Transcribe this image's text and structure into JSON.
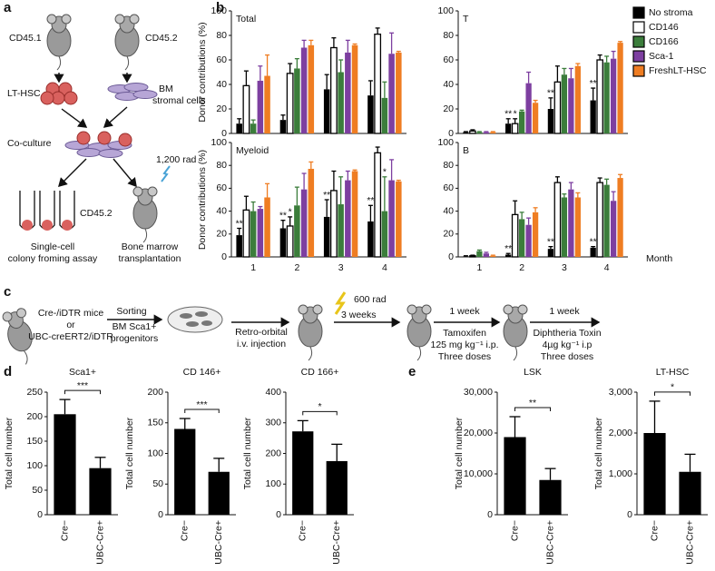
{
  "panel_labels": [
    "a",
    "b",
    "c",
    "d",
    "e"
  ],
  "diagram_a": {
    "mouse_left": "CD45.1",
    "mouse_right": "CD45.2",
    "cells_left": "LT-HSC",
    "cells_right": [
      "BM",
      "stromal cells"
    ],
    "coculture": "Co-culture",
    "tubes": "CD45.2",
    "radiation": "1,200 rad",
    "assay": [
      "Single-cell",
      "colony froming assay"
    ],
    "transplant": [
      "Bone marrow",
      "transplantation"
    ]
  },
  "diagram_c": {
    "mice": [
      "Cre-/iDTR mice",
      "or",
      "UBC-creERT2/iDTR"
    ],
    "sorting": [
      "Sorting",
      "BM Sca1+",
      "progenitors"
    ],
    "injection": [
      "Retro-orbital",
      "i.v. injection"
    ],
    "radiation": "600 rad",
    "wait": "3 weeks",
    "tamoxifen": [
      "1 week",
      "Tamoxifen",
      "125 mg kg⁻¹ i.p.",
      "Three doses"
    ],
    "toxin": [
      "1 week",
      "Diphtheria Toxin",
      "4µg kg⁻¹ i.p",
      "Three doses"
    ]
  },
  "chart_data": [
    {
      "type": "bar",
      "title": "Total",
      "ylabel": "Donor contributions (%)",
      "legend": "right",
      "categories": [
        null,
        null,
        null,
        null
      ],
      "ylim": [
        0,
        100
      ],
      "yticks": [
        0,
        20,
        40,
        60,
        80,
        100
      ],
      "series": [
        {
          "name": "No stroma",
          "color": "#000000",
          "values": [
            8,
            11,
            36,
            31
          ],
          "errors": [
            4,
            4,
            12,
            12
          ]
        },
        {
          "name": "CD146",
          "color": "#ffffff",
          "values": [
            39,
            49,
            70,
            81
          ],
          "errors": [
            12,
            8,
            8,
            5
          ]
        },
        {
          "name": "CD166",
          "color": "#3b7d3b",
          "values": [
            8,
            53,
            50,
            29
          ],
          "errors": [
            3,
            8,
            10,
            13
          ]
        },
        {
          "name": "Sca-1",
          "color": "#7d3fa0",
          "values": [
            43,
            70,
            66,
            65
          ],
          "errors": [
            12,
            6,
            10,
            17
          ]
        },
        {
          "name": "FreshLT-HSC",
          "color": "#ef7d22",
          "values": [
            47,
            72,
            72,
            66
          ],
          "errors": [
            17,
            4,
            1,
            1
          ]
        }
      ]
    },
    {
      "type": "bar",
      "title": "T",
      "categories": [
        null,
        null,
        null,
        null
      ],
      "ylim": [
        0,
        100
      ],
      "yticks": [
        0,
        20,
        40,
        60,
        80,
        100
      ],
      "series": [
        {
          "color": "#000000",
          "values": [
            1,
            8,
            20,
            27
          ],
          "errors": [
            0.5,
            4,
            9,
            10
          ],
          "annotations": [
            null,
            "**",
            "**",
            "**"
          ]
        },
        {
          "color": "#ffffff",
          "values": [
            2,
            8,
            42,
            60
          ],
          "errors": [
            1,
            4,
            13,
            4
          ],
          "annotations": [
            null,
            "*",
            null,
            null
          ]
        },
        {
          "color": "#3b7d3b",
          "values": [
            1,
            18,
            48,
            58
          ],
          "errors": [
            0.5,
            1,
            5,
            5
          ]
        },
        {
          "color": "#7d3fa0",
          "values": [
            1,
            41,
            45,
            61
          ],
          "errors": [
            0.5,
            9,
            8,
            6
          ]
        },
        {
          "color": "#ef7d22",
          "values": [
            1,
            25,
            55,
            74
          ],
          "errors": [
            0.5,
            2,
            2,
            1
          ]
        }
      ]
    },
    {
      "type": "bar",
      "title": "Myeloid",
      "ylabel": "Donor contributions (%)",
      "categories": [
        "1",
        "2",
        "3",
        "4"
      ],
      "ylim": [
        0,
        100
      ],
      "yticks": [
        0,
        20,
        40,
        60,
        80,
        100
      ],
      "series": [
        {
          "color": "#000000",
          "values": [
            19,
            25,
            35,
            31
          ],
          "errors": [
            6,
            7,
            15,
            14
          ],
          "annotations": [
            "**",
            "**",
            "**",
            "**"
          ]
        },
        {
          "color": "#ffffff",
          "values": [
            41,
            27,
            58,
            91
          ],
          "errors": [
            12,
            8,
            17,
            5
          ],
          "annotations": [
            null,
            "*",
            null,
            null
          ]
        },
        {
          "color": "#3b7d3b",
          "values": [
            40,
            45,
            46,
            40
          ],
          "errors": [
            8,
            16,
            24,
            30
          ],
          "annotations": [
            null,
            null,
            null,
            "*"
          ]
        },
        {
          "color": "#7d3fa0",
          "values": [
            42,
            59,
            67,
            67
          ],
          "errors": [
            2,
            14,
            8,
            18
          ]
        },
        {
          "color": "#ef7d22",
          "values": [
            52,
            77,
            75,
            66
          ],
          "errors": [
            12,
            6,
            1,
            1
          ]
        }
      ]
    },
    {
      "type": "bar",
      "title": "B",
      "xlabel": "Month",
      "categories": [
        "1",
        "2",
        "3",
        "4"
      ],
      "ylim": [
        0,
        100
      ],
      "yticks": [
        0,
        20,
        40,
        60,
        80,
        100
      ],
      "series": [
        {
          "color": "#000000",
          "values": [
            0.5,
            2,
            7,
            8
          ],
          "errors": [
            0.5,
            1,
            2,
            1
          ],
          "annotations": [
            null,
            "**",
            "**",
            "**"
          ]
        },
        {
          "color": "#ffffff",
          "values": [
            1,
            37,
            65,
            65
          ],
          "errors": [
            0.5,
            12,
            5,
            4
          ]
        },
        {
          "color": "#3b7d3b",
          "values": [
            5,
            33,
            52,
            63
          ],
          "errors": [
            1,
            6,
            3,
            5
          ]
        },
        {
          "color": "#7d3fa0",
          "values": [
            3,
            28,
            59,
            49
          ],
          "errors": [
            1,
            6,
            6,
            8
          ]
        },
        {
          "color": "#ef7d22",
          "values": [
            1,
            39,
            52,
            69
          ],
          "errors": [
            0.5,
            4,
            4,
            3
          ]
        }
      ]
    },
    {
      "type": "bar",
      "title": "Sca1+",
      "ylabel": "Total cell number",
      "categories": [
        "Cre−",
        "UBC-Cre+"
      ],
      "values": [
        205,
        95
      ],
      "errors": [
        30,
        22
      ],
      "color": "#000000",
      "significance": "***",
      "ylim": [
        0,
        250
      ],
      "yticks": [
        0,
        50,
        100,
        150,
        200,
        250
      ]
    },
    {
      "type": "bar",
      "title": "CD 146+",
      "ylabel": "Total cell number",
      "categories": [
        "Cre−",
        "UBC-Cre+"
      ],
      "values": [
        140,
        70
      ],
      "errors": [
        17,
        22
      ],
      "color": "#000000",
      "significance": "***",
      "ylim": [
        0,
        200
      ],
      "yticks": [
        0,
        50,
        100,
        150,
        200
      ]
    },
    {
      "type": "bar",
      "title": "CD 166+",
      "ylabel": "Total cell number",
      "categories": [
        "Cre−",
        "UBC-Cre+"
      ],
      "values": [
        272,
        175
      ],
      "errors": [
        35,
        55
      ],
      "color": "#000000",
      "significance": "*",
      "ylim": [
        0,
        400
      ],
      "yticks": [
        0,
        100,
        200,
        300,
        400
      ]
    },
    {
      "type": "bar",
      "title": "LSK",
      "ylabel": "Total cell number",
      "categories": [
        "Cre−",
        "UBC-Cre+"
      ],
      "values": [
        19000,
        8500
      ],
      "errors": [
        5000,
        2800
      ],
      "color": "#000000",
      "significance": "**",
      "ylim": [
        0,
        30000
      ],
      "yticks": [
        0,
        {
          "value": 10000,
          "label": "10,000"
        },
        {
          "value": 20000,
          "label": "20,000"
        },
        {
          "value": 30000,
          "label": "30,000"
        }
      ]
    },
    {
      "type": "bar",
      "title": "LT-HSC",
      "ylabel": "Total cell number",
      "categories": [
        "Cre−",
        "UBC-Cre+"
      ],
      "values": [
        2000,
        1050
      ],
      "errors": [
        780,
        430
      ],
      "color": "#000000",
      "significance": "*",
      "ylim": [
        0,
        3000
      ],
      "yticks": [
        0,
        {
          "value": 1000,
          "label": "1,000"
        },
        {
          "value": 2000,
          "label": "2,000"
        },
        {
          "value": 3000,
          "label": "3,000"
        }
      ]
    }
  ]
}
